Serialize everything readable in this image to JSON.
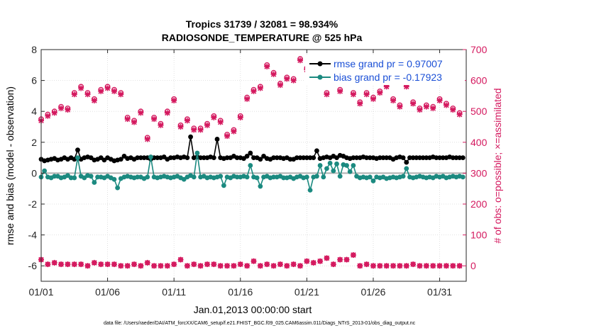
{
  "chart_data": {
    "type": "line",
    "title_line1": "Tropics 31739 / 32081 = 98.934%",
    "title_line2": "RADIOSONDE_TEMPERATURE @ 525 hPa",
    "xlabel": "Jan.01,2013 00:00:00 start",
    "ylabel_left": "rmse and bias (model - observation)",
    "ylabel_right": "# of obs: o=possible; ×=assimilated",
    "footer": "data file: /Users/raeder/DAI/ATM_forcXX/CAM6_setup/f.e21.FHIST_BGC.f09_025.CAM6assim.011/Diags_NTrS_2013-01/obs_diag_output.nc",
    "xlim": [
      0,
      32
    ],
    "ylim_left": [
      -7,
      8
    ],
    "ylim_right": [
      -50,
      700
    ],
    "x_ticks": [
      0,
      5,
      10,
      15,
      20,
      25,
      30
    ],
    "x_tick_labels": [
      "01/01",
      "01/06",
      "01/11",
      "01/16",
      "01/21",
      "01/26",
      "01/31"
    ],
    "y_left_ticks": [
      -6,
      -4,
      -2,
      0,
      2,
      4,
      6,
      8
    ],
    "y_left_tick_labels": [
      "-6",
      "-4",
      "-2",
      "0",
      "2",
      "4",
      "6",
      "8"
    ],
    "y_right_ticks": [
      0,
      100,
      200,
      300,
      400,
      500,
      600,
      700
    ],
    "y_right_tick_labels": [
      "0",
      "100",
      "200",
      "300",
      "400",
      "500",
      "600",
      "700"
    ],
    "grid": true,
    "legend_position": "top-right",
    "x": [
      0.0,
      0.25,
      0.5,
      0.75,
      1.0,
      1.25,
      1.5,
      1.75,
      2.0,
      2.25,
      2.5,
      2.75,
      3.0,
      3.25,
      3.5,
      3.75,
      4.0,
      4.25,
      4.5,
      4.75,
      5.0,
      5.25,
      5.5,
      5.75,
      6.0,
      6.25,
      6.5,
      6.75,
      7.0,
      7.25,
      7.5,
      7.75,
      8.0,
      8.25,
      8.5,
      8.75,
      9.0,
      9.25,
      9.5,
      9.75,
      10.0,
      10.25,
      10.5,
      10.75,
      11.0,
      11.25,
      11.5,
      11.75,
      12.0,
      12.25,
      12.5,
      12.75,
      13.0,
      13.25,
      13.5,
      13.75,
      14.0,
      14.25,
      14.5,
      14.75,
      15.0,
      15.25,
      15.5,
      15.75,
      16.0,
      16.25,
      16.5,
      16.75,
      17.0,
      17.25,
      17.5,
      17.75,
      18.0,
      18.25,
      18.5,
      18.75,
      19.0,
      19.25,
      19.5,
      19.75,
      20.0,
      20.25,
      20.5,
      20.75,
      21.0,
      21.25,
      21.5,
      21.75,
      22.0,
      22.25,
      22.5,
      22.75,
      23.0,
      23.25,
      23.5,
      23.75,
      24.0,
      24.25,
      24.5,
      24.75,
      25.0,
      25.25,
      25.5,
      25.75,
      26.0,
      26.25,
      26.5,
      26.75,
      27.0,
      27.25,
      27.5,
      27.75,
      28.0,
      28.25,
      28.5,
      28.75,
      29.0,
      29.25,
      29.5,
      29.75,
      30.0,
      30.25,
      30.5,
      30.75,
      31.0,
      31.25,
      31.5,
      31.75
    ],
    "series": [
      {
        "name": "rmse grand pr = 0.97007",
        "color": "#000000",
        "axis": "left",
        "values": [
          0.9,
          0.8,
          0.85,
          0.9,
          0.95,
          0.85,
          0.9,
          1.0,
          0.9,
          1.0,
          0.9,
          1.5,
          0.9,
          1.0,
          1.05,
          1.0,
          0.85,
          0.9,
          1.0,
          0.85,
          1.0,
          0.9,
          0.8,
          0.85,
          0.9,
          1.1,
          0.95,
          1.0,
          0.9,
          1.0,
          1.0,
          1.0,
          1.0,
          0.9,
          1.0,
          1.0,
          1.0,
          1.05,
          0.9,
          1.0,
          1.0,
          1.05,
          1.0,
          1.05,
          1.0,
          2.35,
          1.0,
          1.05,
          1.0,
          1.0,
          1.0,
          1.05,
          1.0,
          2.2,
          1.0,
          0.95,
          1.0,
          1.0,
          1.1,
          1.0,
          1.0,
          0.95,
          1.1,
          1.3,
          1.0,
          1.0,
          0.9,
          1.1,
          0.95,
          0.9,
          1.0,
          1.0,
          1.0,
          0.95,
          1.0,
          0.9,
          0.9,
          1.0,
          1.0,
          1.0,
          1.0,
          1.0,
          1.0,
          1.45,
          0.95,
          1.0,
          1.05,
          1.0,
          1.1,
          1.0,
          1.15,
          1.1,
          1.0,
          0.95,
          1.0,
          1.0,
          1.0,
          1.05,
          1.0,
          1.0,
          1.0,
          0.95,
          1.0,
          1.0,
          1.0,
          1.0,
          0.9,
          1.0,
          1.05,
          1.0,
          0.7,
          1.0,
          1.0,
          1.0,
          1.0,
          1.0,
          1.0,
          1.0,
          1.05,
          1.0,
          1.0,
          1.0,
          1.0,
          1.05,
          1.0,
          1.0,
          1.0,
          1.0
        ]
      },
      {
        "name": "bias grand pr = -0.17923",
        "color": "#1b8a80",
        "axis": "left",
        "values": [
          -0.25,
          0.15,
          -0.25,
          -0.3,
          -0.2,
          -0.2,
          -0.3,
          -0.25,
          -0.15,
          -0.3,
          -0.3,
          1.0,
          -0.2,
          -0.3,
          -0.15,
          -0.2,
          -0.6,
          -0.25,
          -0.25,
          -0.3,
          -0.2,
          -0.3,
          -0.4,
          -0.95,
          -0.35,
          -0.25,
          -0.2,
          -0.25,
          -0.3,
          -0.25,
          -0.25,
          -0.35,
          -0.25,
          1.05,
          -0.25,
          -0.3,
          -0.25,
          -0.2,
          -0.25,
          -0.3,
          -0.25,
          -0.2,
          -0.3,
          -0.4,
          -0.25,
          -0.15,
          -0.25,
          1.3,
          -0.25,
          -0.2,
          -0.3,
          -0.25,
          -0.3,
          -0.25,
          -0.2,
          -0.8,
          -0.25,
          -0.3,
          -0.2,
          -0.25,
          -0.25,
          -0.2,
          -0.25,
          0.5,
          -0.25,
          -0.3,
          -0.85,
          -0.25,
          -0.2,
          -0.3,
          -0.25,
          -0.25,
          -0.2,
          -0.3,
          -0.3,
          -0.25,
          -0.35,
          -0.25,
          -0.2,
          -0.3,
          -0.25,
          -1.1,
          -0.25,
          -0.2,
          0.5,
          -0.25,
          0.3,
          0.65,
          0.15,
          0.6,
          -0.2,
          0.55,
          0.5,
          0.1,
          0.5,
          -0.2,
          -0.3,
          -0.25,
          -0.3,
          -0.25,
          -0.5,
          -0.25,
          -0.3,
          -0.25,
          -0.35,
          -0.3,
          -0.25,
          -0.3,
          -0.25,
          -0.2,
          0.3,
          -0.25,
          -0.3,
          -0.25,
          -0.2,
          -0.25,
          -0.3,
          -0.25,
          -0.3,
          -0.2,
          -0.25,
          -0.2,
          -0.3,
          -0.25,
          -0.2,
          -0.25,
          -0.2,
          -0.25
        ]
      }
    ],
    "obs_series": {
      "color": "#d4185e",
      "axis": "right",
      "possible": [
        475,
        470,
        490,
        495,
        500,
        505,
        515,
        525,
        510,
        545,
        560,
        590,
        580,
        565,
        560,
        550,
        540,
        565,
        570,
        595,
        580,
        560,
        570,
        590,
        560,
        510,
        480,
        460,
        470,
        470,
        500,
        485,
        415,
        460,
        480,
        465,
        460,
        470,
        500,
        485,
        540,
        430,
        455,
        500,
        475,
        470,
        445,
        455,
        445,
        505,
        460,
        490,
        485,
        500,
        470,
        380,
        425,
        420,
        440,
        445,
        485,
        510,
        545,
        525,
        570,
        560,
        580,
        575,
        650,
        620,
        625,
        560,
        590,
        620,
        610,
        610,
        605,
        665,
        670,
        650,
        640,
        625,
        600,
        595,
        610,
        570,
        560,
        555,
        600,
        600,
        570,
        575,
        600,
        600,
        560,
        605,
        530,
        600,
        560,
        535,
        545,
        545,
        565,
        590,
        585,
        570,
        540,
        555,
        520,
        600,
        585,
        575,
        530,
        520,
        510,
        510,
        520,
        505,
        515,
        545,
        540,
        530,
        525,
        520,
        510,
        500,
        495,
        495
      ],
      "assimilated": [
        470,
        465,
        485,
        490,
        495,
        500,
        510,
        520,
        505,
        540,
        555,
        585,
        575,
        560,
        555,
        545,
        535,
        560,
        565,
        590,
        575,
        555,
        565,
        585,
        555,
        505,
        475,
        455,
        465,
        465,
        495,
        480,
        410,
        455,
        475,
        460,
        455,
        465,
        495,
        480,
        535,
        425,
        450,
        495,
        470,
        465,
        440,
        450,
        440,
        500,
        455,
        485,
        480,
        495,
        465,
        375,
        420,
        415,
        435,
        440,
        480,
        505,
        540,
        520,
        565,
        555,
        575,
        570,
        645,
        615,
        620,
        555,
        585,
        615,
        605,
        605,
        600,
        660,
        665,
        645,
        635,
        620,
        595,
        590,
        605,
        565,
        555,
        550,
        595,
        595,
        565,
        570,
        595,
        595,
        555,
        600,
        525,
        595,
        555,
        530,
        540,
        540,
        560,
        585,
        580,
        565,
        535,
        550,
        515,
        595,
        580,
        570,
        525,
        515,
        505,
        505,
        515,
        500,
        510,
        540,
        535,
        525,
        520,
        515,
        505,
        495,
        490,
        490
      ],
      "bottom_values": [
        20,
        15,
        5,
        15,
        10,
        15,
        5,
        10,
        5,
        0,
        5,
        10,
        5,
        0,
        0,
        15,
        10,
        5,
        5,
        10,
        5,
        0,
        5,
        0,
        0,
        -5,
        0,
        0,
        5,
        0,
        0,
        5,
        10,
        0,
        0,
        5,
        0,
        10,
        0,
        0,
        5,
        0,
        20,
        0,
        0,
        0,
        5,
        0,
        0,
        0,
        5,
        0,
        5,
        0,
        0,
        0,
        0,
        5,
        0,
        0,
        5,
        0,
        0,
        5,
        15,
        0,
        0,
        10,
        5,
        0,
        0,
        0,
        5,
        0,
        0,
        0,
        5,
        0,
        0,
        0,
        15,
        0,
        10,
        20,
        15,
        30,
        25,
        10,
        5,
        15,
        20,
        5,
        20,
        10,
        35,
        5,
        0,
        0,
        5,
        0,
        0,
        5,
        0,
        10,
        0,
        0,
        0,
        5,
        0,
        0,
        0,
        0,
        5,
        0,
        0,
        0,
        0,
        5,
        0,
        0,
        0,
        5,
        0,
        0,
        0,
        0,
        0,
        0
      ]
    }
  }
}
